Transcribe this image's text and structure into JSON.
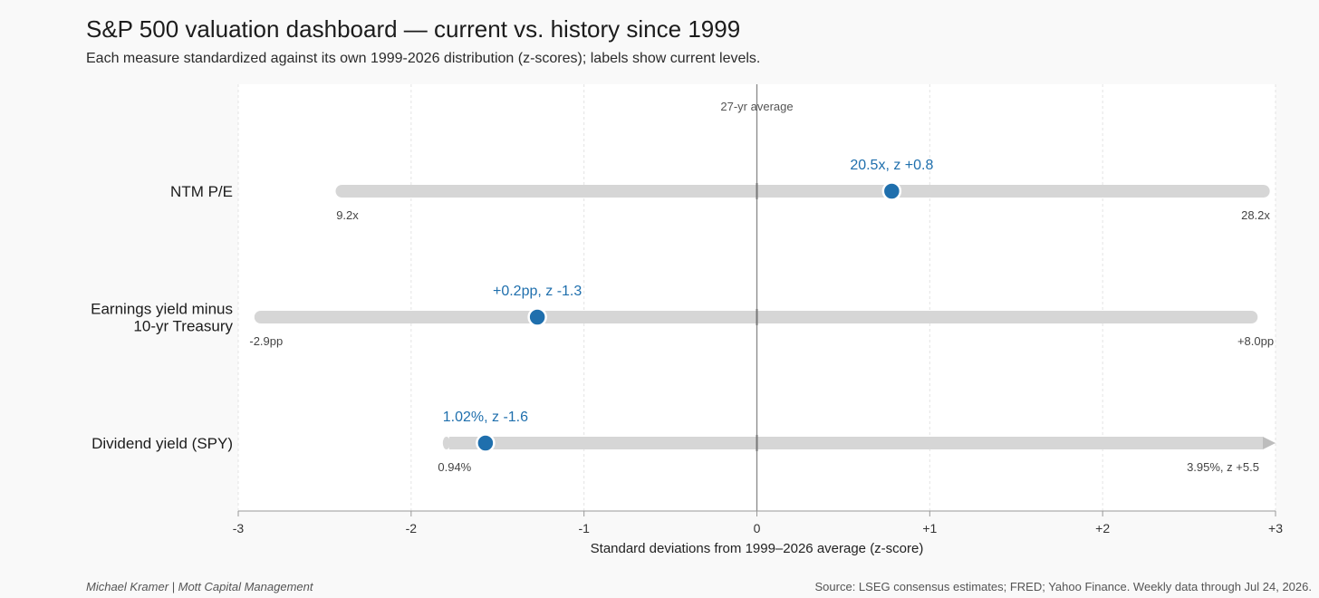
{
  "title": "S&P 500 valuation dashboard — current vs. history since 1999",
  "subtitle": "Each measure standardized against its own 1999-2026 distribution (z-scores); labels show current levels.",
  "footer": {
    "left": "Michael Kramer  |  Mott Capital Management",
    "right": "Source: LSEG consensus estimates; FRED; Yahoo Finance. Weekly data through Jul 24, 2026."
  },
  "chart_data": {
    "type": "range-dot",
    "xlabel": "Standard deviations from 1999–2026 average (z-score)",
    "xlim": [
      -3,
      3
    ],
    "xticks": [
      -3,
      -2,
      -1,
      0,
      1,
      2,
      3
    ],
    "xtick_labels": [
      "-3",
      "-2",
      "-1",
      "0",
      "+1",
      "+2",
      "+3"
    ],
    "grid": true,
    "reference_line": {
      "x": 0,
      "label": "27-yr average"
    },
    "colors": {
      "dot": "#1f6fad",
      "label": "#1f6fad",
      "range": "#d6d6d6",
      "refline": "#888888"
    },
    "rows": [
      {
        "label": "NTM P/E",
        "min_z": -2.4,
        "max_z": 2.93,
        "current_z": 0.78,
        "current_label": "20.5x, z +0.8",
        "min_label": "9.2x",
        "max_label": "28.2x",
        "clipped": false
      },
      {
        "label": "Earnings yield minus\n10-yr Treasury",
        "min_z": -2.87,
        "max_z": 2.86,
        "current_z": -1.27,
        "current_label": "+0.2pp, z -1.3",
        "min_label": "-2.9pp",
        "max_label": "+8.0pp",
        "clipped": false
      },
      {
        "label": "Dividend yield (SPY)",
        "min_z": -1.78,
        "max_z": 5.5,
        "current_z": -1.57,
        "current_label": "1.02%, z -1.6",
        "min_label": "0.94%",
        "max_label": "3.95%, z +5.5",
        "clipped": true
      }
    ]
  }
}
